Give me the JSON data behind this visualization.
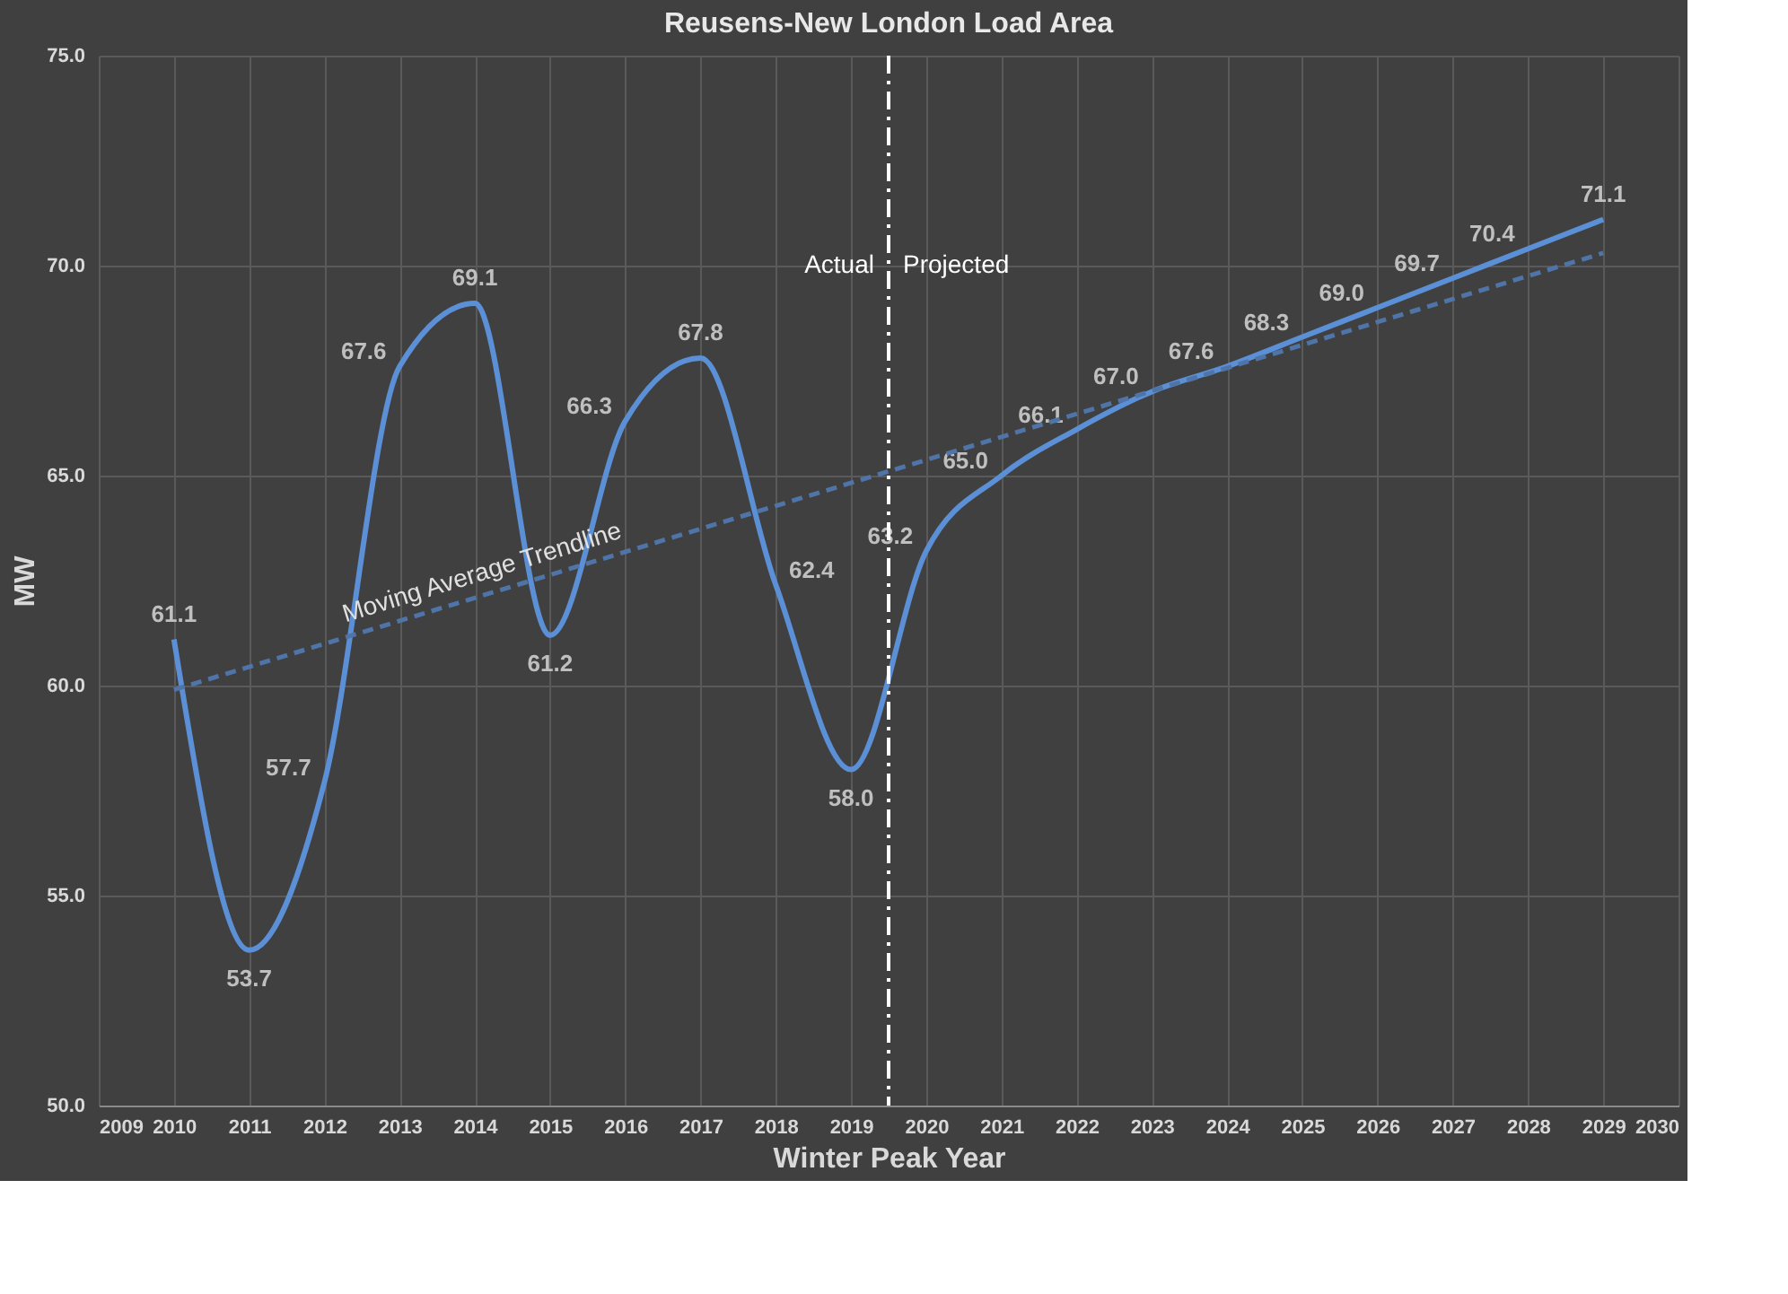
{
  "chart_data": {
    "type": "line",
    "title": "Reusens-New London Load Area",
    "xlabel": "Winter Peak Year",
    "ylabel": "MW",
    "x": [
      2010,
      2011,
      2012,
      2013,
      2014,
      2015,
      2016,
      2017,
      2018,
      2019,
      2020,
      2021,
      2022,
      2023,
      2024,
      2025,
      2026,
      2027,
      2028,
      2029
    ],
    "series": [
      {
        "color": "#5b8fd6",
        "values": [
          61.1,
          53.7,
          57.7,
          67.6,
          69.1,
          61.2,
          66.3,
          67.8,
          62.4,
          58.0,
          63.2,
          65.0,
          66.1,
          67.0,
          67.6,
          68.3,
          69.0,
          69.7,
          70.4,
          71.1
        ],
        "value_labels": [
          "61.1",
          "53.7",
          "57.7",
          "67.6",
          "69.1",
          "61.2",
          "66.3",
          "67.8",
          "62.4",
          "58.0",
          "63.2",
          "65.0",
          "66.1",
          "67.0",
          "67.6",
          "68.3",
          "69.0",
          "69.7",
          "70.4",
          "71.1"
        ]
      },
      {
        "name": "Moving Average Trendline",
        "type": "line",
        "line_style": "dashed",
        "color": "#4f74a8",
        "x": [
          2010,
          2029
        ],
        "values": [
          59.9,
          70.3
        ]
      }
    ],
    "xlim": [
      2009,
      2030
    ],
    "xticks": [
      2009,
      2010,
      2011,
      2012,
      2013,
      2014,
      2015,
      2016,
      2017,
      2018,
      2019,
      2020,
      2021,
      2022,
      2023,
      2024,
      2025,
      2026,
      2027,
      2028,
      2029,
      2030
    ],
    "ylim": [
      50,
      75
    ],
    "yticks": [
      {
        "value": 50,
        "label": "50.0"
      },
      {
        "value": 55,
        "label": "55.0"
      },
      {
        "value": 60,
        "label": "60.0"
      },
      {
        "value": 65,
        "label": "65.0"
      },
      {
        "value": 70,
        "label": "70.0"
      },
      {
        "value": 75,
        "label": "75.0"
      }
    ],
    "ref_lines": [
      {
        "axis": "x",
        "value": 2019.5,
        "color": "#ffffff",
        "line_style": "dashdot"
      }
    ],
    "annotations": [
      "Actual",
      "Projected"
    ],
    "grid": true,
    "marker": "none"
  }
}
